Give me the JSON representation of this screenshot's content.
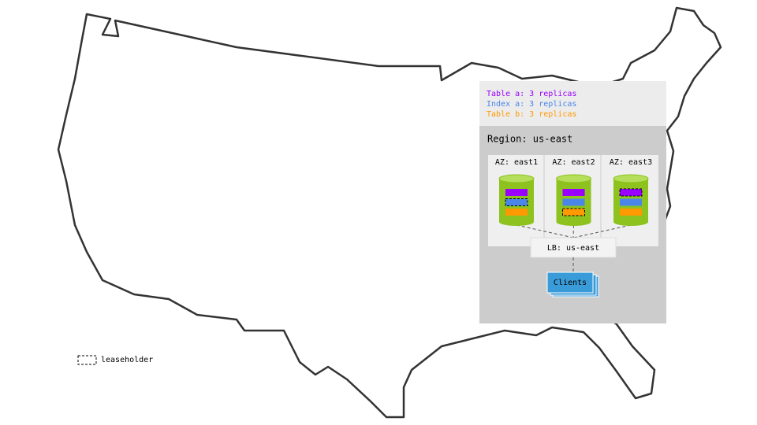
{
  "tables": [
    {
      "label": "Table a: 3 replicas",
      "color": "#9900ff"
    },
    {
      "label": "Index a: 3 replicas",
      "color": "#4a86e8"
    },
    {
      "label": "Table b: 3 replicas",
      "color": "#ff9900"
    }
  ],
  "region": {
    "label": "Region: us-east",
    "zones": [
      {
        "label": "AZ: east1"
      },
      {
        "label": "AZ: east2"
      },
      {
        "label": "AZ: east3"
      }
    ],
    "load_balancer": "LB: us-east",
    "clients": "Clients"
  },
  "legend": {
    "leaseholder": "leaseholder"
  }
}
